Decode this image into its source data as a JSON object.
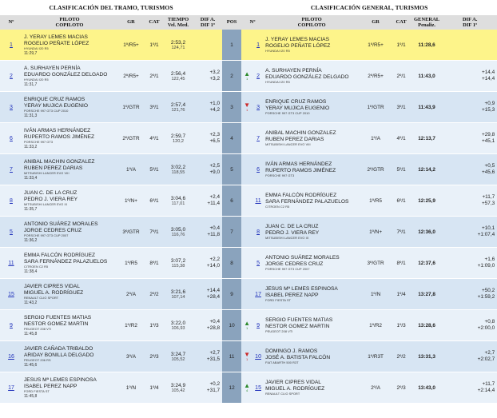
{
  "headers": {
    "left_title": "CLASIFICACIÓN DEL TRAMO, TURISMOS",
    "right_title": "CLASIFICACIÓN GENERAL, TURISMOS",
    "n": "Nº",
    "piloto": "PILOTO",
    "copiloto": "COPILOTO",
    "gr": "GR",
    "cat": "CAT",
    "tiempo": "TIEMPO",
    "vel_med": "Vel. Med.",
    "dif_a": "DIF A.",
    "dif_1": "DIF 1º",
    "pos": "POS",
    "general": "GENERAL",
    "penaliz": "Penaliz."
  },
  "stage": [
    {
      "num": "1",
      "driver": "J. YERAY LEMES MACIAS",
      "codriver": "ROGELIO PEÑATE LÓPEZ",
      "car": "HYUNDAI I20 R5",
      "time": "11:29,7",
      "gr": "1º/R5+",
      "cat": "1º/1",
      "t": "2:53,2",
      "vel": "124,71",
      "dif_a": "",
      "dif_1": ""
    },
    {
      "num": "2",
      "driver": "A. SURHAYEN PERNÍA",
      "codriver": "EDUARDO GONZÁLEZ DELGADO",
      "car": "HYUNDAI I20 R5",
      "time": "11:31,7",
      "gr": "2º/R5+",
      "cat": "2º/1",
      "t": "2:56,4",
      "vel": "122,45",
      "dif_a": "+3,2",
      "dif_1": "+3,2"
    },
    {
      "num": "3",
      "driver": "ENRIQUE CRUZ RAMOS",
      "codriver": "YERAY MUJICA EUGENIO",
      "car": "PORSCHE 997 GT3 CUP 2010",
      "time": "11:31,3",
      "gr": "1º/GTR",
      "cat": "3º/1",
      "t": "2:57,4",
      "vel": "121,76",
      "dif_a": "+1,0",
      "dif_1": "+4,2"
    },
    {
      "num": "6",
      "driver": "IVÁN ARMAS HERNÁNDEZ",
      "codriver": "RUPERTO RAMOS JIMÉNEZ",
      "car": "PORSCHE 997 GT3",
      "time": "11:33,2",
      "gr": "2º/GTR",
      "cat": "4º/1",
      "t": "2:59,7",
      "vel": "120,2",
      "dif_a": "+2,3",
      "dif_1": "+6,5"
    },
    {
      "num": "7",
      "driver": "ANIBAL MACHIN GONZALEZ",
      "codriver": "RUBEN PEREZ DARIAS",
      "car": "MITSUBISHI LANCER EVO VIII",
      "time": "11:33,4",
      "gr": "1º/A",
      "cat": "5º/1",
      "t": "3:02,2",
      "vel": "118,55",
      "dif_a": "+2,5",
      "dif_1": "+9,0"
    },
    {
      "num": "8",
      "driver": "JUAN C. DE LA CRUZ",
      "codriver": "PEDRO J. VIERA REY",
      "car": "MITSUBISHI LANCER EVO IX",
      "time": "11:35,7",
      "gr": "1º/N+",
      "cat": "6º/1",
      "t": "3:04,6",
      "vel": "117,01",
      "dif_a": "+2,4",
      "dif_1": "+11,4"
    },
    {
      "num": "5",
      "driver": "ANTONIO SUÁREZ MORALES",
      "codriver": "JORGE CEDRES CRUZ",
      "car": "PORSCHE 997 GT3 CUP 2007",
      "time": "11:36,2",
      "gr": "3º/GTR",
      "cat": "7º/1",
      "t": "3:05,0",
      "vel": "116,76",
      "dif_a": "+0,4",
      "dif_1": "+11,8"
    },
    {
      "num": "11",
      "driver": "EMMA FALCÓN RODRÍGUEZ",
      "codriver": "SARA FERNÁNDEZ PALAZUELOS",
      "car": "CITROEN C2 R5",
      "time": "11:38,4",
      "gr": "1º/R5",
      "cat": "8º/1",
      "t": "3:07,2",
      "vel": "115,38",
      "dif_a": "+2,2",
      "dif_1": "+14,0"
    },
    {
      "num": "15",
      "driver": "JAVIER CIPRES VIDAL",
      "codriver": "MIGUEL A. RODRÍGUEZ",
      "car": "RENAULT CLIO SPORT",
      "time": "11:43,2",
      "gr": "2º/A",
      "cat": "2º/2",
      "t": "3:21,6",
      "vel": "107,14",
      "dif_a": "+14,4",
      "dif_1": "+28,4"
    },
    {
      "num": "9",
      "driver": "SERGIO FUENTES MATIAS",
      "codriver": "NESTOR GOMEZ MARTIN",
      "car": "PEUGEOT 208 VTI",
      "time": "11:45,8",
      "gr": "1º/R2",
      "cat": "1º/3",
      "t": "3:22,0",
      "vel": "106,93",
      "dif_a": "+0,4",
      "dif_1": "+28,8"
    },
    {
      "num": "16",
      "driver": "JAVIER CAÑADA TRIBALDO",
      "codriver": "ARIDAY BONILLA DELGADO",
      "car": "PEUGEOT 206 RS",
      "time": "11:45,6",
      "gr": "3º/A",
      "cat": "2º/3",
      "t": "3:24,7",
      "vel": "105,52",
      "dif_a": "+2,7",
      "dif_1": "+31,5"
    },
    {
      "num": "17",
      "driver": "JESUS Mª LEMES ESPINOSA",
      "codriver": "ISABEL PEREZ NAPP",
      "car": "FORD FIESTA ST",
      "time": "11:45,8",
      "gr": "1º/N",
      "cat": "1º/4",
      "t": "3:24,9",
      "vel": "105,42",
      "dif_a": "+0,2",
      "dif_1": "+31,7"
    }
  ],
  "general": [
    {
      "pos": "1",
      "arrow": "",
      "move": "",
      "num": "1",
      "driver": "J. YERAY LEMES MACIAS",
      "codriver": "ROGELIO PEÑATE LÓPEZ",
      "car": "HYUNDAI I20 R5",
      "gr": "1º/R5+",
      "cat": "1º/1",
      "t": "11:28,6",
      "dif_a": "",
      "dif_1": ""
    },
    {
      "pos": "2",
      "arrow": "▲",
      "move": "1",
      "num": "2",
      "driver": "A. SURHAYEN PERNÍA",
      "codriver": "EDUARDO GONZÁLEZ DELGADO",
      "car": "HYUNDAI I20 R5",
      "gr": "2º/R5+",
      "cat": "2º/1",
      "t": "11:43,0",
      "dif_a": "+14,4",
      "dif_1": "+14,4"
    },
    {
      "pos": "3",
      "arrow": "▼",
      "move": "1",
      "num": "3",
      "driver": "ENRIQUE CRUZ RAMOS",
      "codriver": "YERAY MUJICA EUGENIO",
      "car": "PORSCHE 997 GT3 CUP 2010",
      "gr": "1º/GTR",
      "cat": "3º/1",
      "t": "11:43,9",
      "dif_a": "+0,9",
      "dif_1": "+15,3"
    },
    {
      "pos": "4",
      "arrow": "",
      "move": "",
      "num": "7",
      "driver": "ANIBAL MACHIN GONZALEZ",
      "codriver": "RUBEN PEREZ DARIAS",
      "car": "MITSUBISHI LANCER EVO VIII",
      "gr": "1º/A",
      "cat": "4º/1",
      "t": "12:13,7",
      "dif_a": "+29,8",
      "dif_1": "+45,1"
    },
    {
      "pos": "5",
      "arrow": "",
      "move": "",
      "num": "6",
      "driver": "IVÁN ARMAS HERNÁNDEZ",
      "codriver": "RUPERTO RAMOS JIMÉNEZ",
      "car": "PORSCHE 997 GT3",
      "gr": "2º/GTR",
      "cat": "5º/1",
      "t": "12:14,2",
      "dif_a": "+0,5",
      "dif_1": "+45,6"
    },
    {
      "pos": "6",
      "arrow": "",
      "move": "",
      "num": "11",
      "driver": "EMMA FALCÓN RODRÍGUEZ",
      "codriver": "SARA FERNÁNDEZ PALAZUELOS",
      "car": "CITROEN C2 R5",
      "gr": "1º/R5",
      "cat": "6º/1",
      "t": "12:25,9",
      "dif_a": "+11,7",
      "dif_1": "+57,3"
    },
    {
      "pos": "7",
      "arrow": "",
      "move": "",
      "num": "8",
      "driver": "JUAN C. DE LA CRUZ",
      "codriver": "PEDRO J. VIERA REY",
      "car": "MITSUBISHI LANCER EVO IX",
      "gr": "1º/N+",
      "cat": "7º/1",
      "t": "12:36,0",
      "dif_a": "+10,1",
      "dif_1": "+1:07,4"
    },
    {
      "pos": "8",
      "arrow": "",
      "move": "",
      "num": "5",
      "driver": "ANTONIO SUÁREZ MORALES",
      "codriver": "JORGE CEDRES CRUZ",
      "car": "PORSCHE 997 GT3 CUP 2007",
      "gr": "3º/GTR",
      "cat": "8º/1",
      "t": "12:37,6",
      "dif_a": "+1,6",
      "dif_1": "+1:09,0"
    },
    {
      "pos": "9",
      "arrow": "",
      "move": "",
      "num": "17",
      "driver": "JESUS Mª LEMES ESPINOSA",
      "codriver": "ISABEL PEREZ NAPP",
      "car": "FORD FIESTA ST",
      "gr": "1º/N",
      "cat": "1º/4",
      "t": "13:27,8",
      "dif_a": "+50,2",
      "dif_1": "+1:59,2"
    },
    {
      "pos": "10",
      "arrow": "▲",
      "move": "1",
      "num": "9",
      "driver": "SERGIO FUENTES MATIAS",
      "codriver": "NESTOR GOMEZ MARTIN",
      "car": "PEUGEOT 208 VTI",
      "gr": "1º/R2",
      "cat": "1º/3",
      "t": "13:28,6",
      "dif_a": "+0,8",
      "dif_1": "+2:00,0"
    },
    {
      "pos": "11",
      "arrow": "▼",
      "move": "1",
      "num": "10",
      "driver": "DOMINGO J. RAMOS",
      "codriver": "JOSÉ A. BATISTA FALCÓN",
      "car": "FIAT ABARTH 500 R3T",
      "gr": "1º/R3T",
      "cat": "2º/2",
      "t": "13:31,3",
      "dif_a": "+2,7",
      "dif_1": "+2:02,7"
    },
    {
      "pos": "12",
      "arrow": "▲",
      "move": "4",
      "num": "15",
      "driver": "JAVIER CIPRES VIDAL",
      "codriver": "MIGUEL A. RODRÍGUEZ",
      "car": "RENAULT CLIO SPORT",
      "gr": "2º/A",
      "cat": "2º/3",
      "t": "13:43,0",
      "dif_a": "+11,7",
      "dif_1": "+2:14,4"
    }
  ]
}
